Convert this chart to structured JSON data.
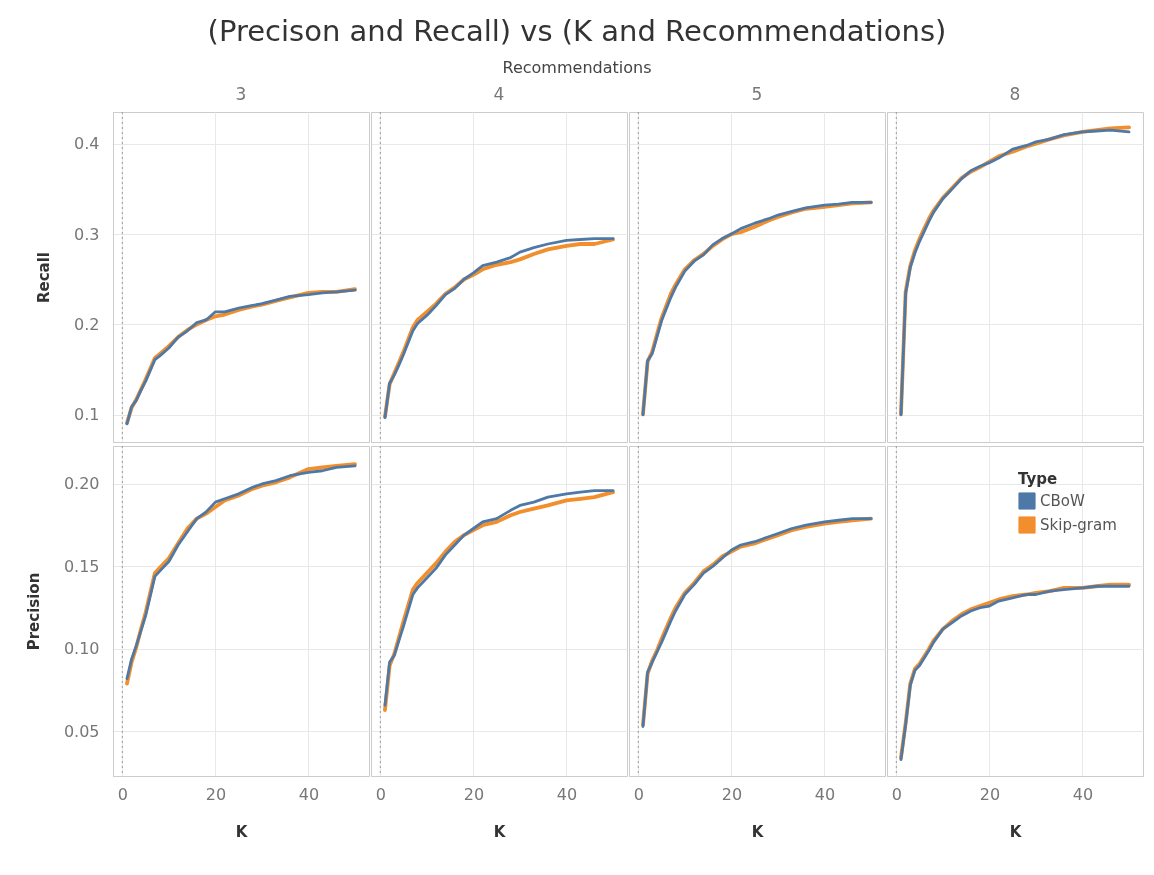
{
  "chart_data": [
    {
      "type": "line",
      "title": "3",
      "ylabel": "Recall",
      "annotations": [
        "(Precison and Recall) vs (K and Recommendations)",
        "Recommendations"
      ],
      "xlim": [
        -2,
        53
      ],
      "xticks": [
        0,
        20,
        40
      ],
      "ylim": [
        0.07,
        0.435
      ],
      "yticks": [
        0.1,
        0.2,
        0.3,
        0.4
      ],
      "grid": true,
      "tick_labels": "y",
      "ref_lines": [
        {
          "axis": "x",
          "value": 0,
          "color": "#999999",
          "line_style": "dotted"
        }
      ],
      "x": [
        1,
        2,
        3,
        4,
        5,
        7,
        8,
        10,
        12,
        14,
        16,
        18,
        20,
        22,
        25,
        28,
        30,
        33,
        36,
        40,
        43,
        46,
        50
      ],
      "series": [
        {
          "color": "#4e79a7",
          "values": [
            0.09,
            0.109,
            0.116,
            0.127,
            0.137,
            0.161,
            0.165,
            0.174,
            0.186,
            0.193,
            0.202,
            0.205,
            0.214,
            0.214,
            0.218,
            0.221,
            0.223,
            0.227,
            0.231,
            0.233,
            0.235,
            0.236,
            0.238
          ]
        },
        {
          "color": "#f28e2b",
          "values": [
            0.091,
            0.108,
            0.117,
            0.128,
            0.139,
            0.163,
            0.167,
            0.176,
            0.186,
            0.194,
            0.2,
            0.205,
            0.209,
            0.211,
            0.216,
            0.22,
            0.222,
            0.226,
            0.23,
            0.235,
            0.236,
            0.236,
            0.239
          ]
        }
      ]
    },
    {
      "type": "line",
      "title": "4",
      "xlim": [
        -2,
        53
      ],
      "xticks": [
        0,
        20,
        40
      ],
      "ylim": [
        0.07,
        0.435
      ],
      "yticks": [
        0.1,
        0.2,
        0.3,
        0.4
      ],
      "grid": true,
      "tick_labels": false,
      "ref_lines": [
        {
          "axis": "x",
          "value": 0,
          "color": "#999999",
          "line_style": "dotted"
        }
      ],
      "x": [
        1,
        2,
        3,
        4,
        5,
        7,
        8,
        10,
        12,
        14,
        16,
        18,
        20,
        22,
        25,
        28,
        30,
        33,
        36,
        40,
        43,
        46,
        50
      ],
      "series": [
        {
          "color": "#4e79a7",
          "values": [
            0.097,
            0.135,
            0.144,
            0.155,
            0.167,
            0.193,
            0.201,
            0.21,
            0.221,
            0.233,
            0.24,
            0.25,
            0.257,
            0.265,
            0.269,
            0.274,
            0.28,
            0.285,
            0.289,
            0.293,
            0.294,
            0.295,
            0.295
          ]
        },
        {
          "color": "#f28e2b",
          "values": [
            0.098,
            0.134,
            0.146,
            0.158,
            0.17,
            0.197,
            0.205,
            0.214,
            0.223,
            0.234,
            0.241,
            0.25,
            0.255,
            0.261,
            0.266,
            0.269,
            0.272,
            0.278,
            0.283,
            0.287,
            0.289,
            0.289,
            0.294
          ]
        }
      ]
    },
    {
      "type": "line",
      "title": "5",
      "xlim": [
        -2,
        53
      ],
      "xticks": [
        0,
        20,
        40
      ],
      "ylim": [
        0.07,
        0.435
      ],
      "yticks": [
        0.1,
        0.2,
        0.3,
        0.4
      ],
      "grid": true,
      "tick_labels": false,
      "ref_lines": [
        {
          "axis": "x",
          "value": 0,
          "color": "#999999",
          "line_style": "dotted"
        }
      ],
      "x": [
        1,
        2,
        3,
        4,
        5,
        7,
        8,
        10,
        12,
        14,
        16,
        18,
        20,
        22,
        25,
        28,
        30,
        33,
        36,
        40,
        43,
        46,
        50
      ],
      "series": [
        {
          "color": "#4e79a7",
          "values": [
            0.1,
            0.16,
            0.168,
            0.186,
            0.204,
            0.23,
            0.241,
            0.259,
            0.27,
            0.277,
            0.288,
            0.295,
            0.3,
            0.306,
            0.312,
            0.317,
            0.321,
            0.325,
            0.329,
            0.332,
            0.333,
            0.335,
            0.335
          ]
        },
        {
          "color": "#f28e2b",
          "values": [
            0.101,
            0.159,
            0.17,
            0.189,
            0.207,
            0.234,
            0.244,
            0.261,
            0.271,
            0.278,
            0.287,
            0.294,
            0.3,
            0.302,
            0.308,
            0.315,
            0.319,
            0.324,
            0.328,
            0.33,
            0.332,
            0.334,
            0.335
          ]
        }
      ]
    },
    {
      "type": "line",
      "title": "8",
      "xlim": [
        -2,
        53
      ],
      "xticks": [
        0,
        20,
        40
      ],
      "ylim": [
        0.07,
        0.435
      ],
      "yticks": [
        0.1,
        0.2,
        0.3,
        0.4
      ],
      "grid": true,
      "tick_labels": false,
      "ref_lines": [
        {
          "axis": "x",
          "value": 0,
          "color": "#999999",
          "line_style": "dotted"
        }
      ],
      "x": [
        1,
        2,
        3,
        4,
        5,
        7,
        8,
        10,
        12,
        14,
        16,
        18,
        20,
        22,
        25,
        28,
        30,
        33,
        36,
        40,
        43,
        46,
        50
      ],
      "series": [
        {
          "color": "#4e79a7",
          "values": [
            0.1,
            0.234,
            0.263,
            0.279,
            0.292,
            0.314,
            0.324,
            0.339,
            0.35,
            0.361,
            0.37,
            0.375,
            0.379,
            0.384,
            0.394,
            0.398,
            0.402,
            0.405,
            0.41,
            0.413,
            0.414,
            0.415,
            0.413
          ]
        },
        {
          "color": "#f28e2b",
          "values": [
            0.101,
            0.236,
            0.265,
            0.282,
            0.295,
            0.317,
            0.326,
            0.34,
            0.351,
            0.362,
            0.369,
            0.374,
            0.38,
            0.386,
            0.391,
            0.397,
            0.4,
            0.405,
            0.409,
            0.413,
            0.415,
            0.417,
            0.418
          ]
        }
      ]
    },
    {
      "type": "line",
      "xlabel": "K",
      "ylabel": "Precision",
      "xlim": [
        -2,
        53
      ],
      "xticks": [
        0,
        20,
        40
      ],
      "ylim": [
        0.023,
        0.223
      ],
      "yticks": [
        {
          "value": 0.05,
          "label": "0.05"
        },
        {
          "value": 0.1,
          "label": "0.10"
        },
        {
          "value": 0.15,
          "label": "0.15"
        },
        {
          "value": 0.2,
          "label": "0.20"
        }
      ],
      "grid": true,
      "ref_lines": [
        {
          "axis": "x",
          "value": 0,
          "color": "#999999",
          "line_style": "dotted"
        }
      ],
      "x": [
        1,
        2,
        3,
        4,
        5,
        7,
        8,
        10,
        12,
        14,
        16,
        18,
        20,
        22,
        25,
        28,
        30,
        33,
        36,
        40,
        43,
        46,
        50
      ],
      "series": [
        {
          "color": "#4e79a7",
          "values": [
            0.082,
            0.094,
            0.102,
            0.111,
            0.12,
            0.144,
            0.147,
            0.153,
            0.163,
            0.171,
            0.179,
            0.183,
            0.189,
            0.191,
            0.194,
            0.198,
            0.2,
            0.202,
            0.205,
            0.207,
            0.208,
            0.21,
            0.211
          ]
        },
        {
          "color": "#f28e2b",
          "values": [
            0.079,
            0.092,
            0.101,
            0.112,
            0.122,
            0.146,
            0.149,
            0.155,
            0.164,
            0.173,
            0.179,
            0.182,
            0.186,
            0.19,
            0.193,
            0.197,
            0.199,
            0.201,
            0.204,
            0.209,
            0.21,
            0.211,
            0.212
          ]
        }
      ]
    },
    {
      "type": "line",
      "xlabel": "K",
      "xlim": [
        -2,
        53
      ],
      "xticks": [
        0,
        20,
        40
      ],
      "ylim": [
        0.023,
        0.223
      ],
      "yticks": [
        0.05,
        0.1,
        0.15,
        0.2
      ],
      "grid": true,
      "tick_labels": "x",
      "ref_lines": [
        {
          "axis": "x",
          "value": 0,
          "color": "#999999",
          "line_style": "dotted"
        }
      ],
      "x": [
        1,
        2,
        3,
        4,
        5,
        7,
        8,
        10,
        12,
        14,
        16,
        18,
        20,
        22,
        25,
        28,
        30,
        33,
        36,
        40,
        43,
        46,
        50
      ],
      "series": [
        {
          "color": "#4e79a7",
          "values": [
            0.066,
            0.092,
            0.096,
            0.105,
            0.114,
            0.133,
            0.137,
            0.143,
            0.149,
            0.157,
            0.163,
            0.169,
            0.173,
            0.177,
            0.179,
            0.184,
            0.187,
            0.189,
            0.192,
            0.194,
            0.195,
            0.196,
            0.196
          ]
        },
        {
          "color": "#f28e2b",
          "values": [
            0.063,
            0.09,
            0.097,
            0.107,
            0.117,
            0.136,
            0.14,
            0.146,
            0.152,
            0.159,
            0.165,
            0.169,
            0.172,
            0.175,
            0.177,
            0.181,
            0.183,
            0.185,
            0.187,
            0.19,
            0.191,
            0.192,
            0.195
          ]
        }
      ]
    },
    {
      "type": "line",
      "xlabel": "K",
      "xlim": [
        -2,
        53
      ],
      "xticks": [
        0,
        20,
        40
      ],
      "ylim": [
        0.023,
        0.223
      ],
      "yticks": [
        0.05,
        0.1,
        0.15,
        0.2
      ],
      "grid": true,
      "tick_labels": "x",
      "ref_lines": [
        {
          "axis": "x",
          "value": 0,
          "color": "#999999",
          "line_style": "dotted"
        }
      ],
      "x": [
        1,
        2,
        3,
        4,
        5,
        7,
        8,
        10,
        12,
        14,
        16,
        18,
        20,
        22,
        25,
        28,
        30,
        33,
        36,
        40,
        43,
        46,
        50
      ],
      "series": [
        {
          "color": "#4e79a7",
          "values": [
            0.053,
            0.086,
            0.092,
            0.098,
            0.104,
            0.117,
            0.123,
            0.133,
            0.139,
            0.146,
            0.15,
            0.155,
            0.16,
            0.163,
            0.165,
            0.168,
            0.17,
            0.173,
            0.175,
            0.177,
            0.178,
            0.179,
            0.179
          ]
        },
        {
          "color": "#f28e2b",
          "values": [
            0.054,
            0.085,
            0.093,
            0.099,
            0.106,
            0.119,
            0.125,
            0.134,
            0.14,
            0.147,
            0.151,
            0.156,
            0.159,
            0.162,
            0.164,
            0.167,
            0.169,
            0.172,
            0.174,
            0.176,
            0.177,
            0.178,
            0.179
          ]
        }
      ]
    },
    {
      "type": "line",
      "xlabel": "K",
      "legend_title": "Type",
      "legend": "top right",
      "xlim": [
        -2,
        53
      ],
      "xticks": [
        0,
        20,
        40
      ],
      "ylim": [
        0.023,
        0.223
      ],
      "yticks": [
        0.05,
        0.1,
        0.15,
        0.2
      ],
      "grid": true,
      "tick_labels": "x",
      "ref_lines": [
        {
          "axis": "x",
          "value": 0,
          "color": "#999999",
          "line_style": "dotted"
        }
      ],
      "x": [
        1,
        2,
        3,
        4,
        5,
        7,
        8,
        10,
        12,
        14,
        16,
        18,
        20,
        22,
        25,
        28,
        30,
        33,
        36,
        40,
        43,
        46,
        50
      ],
      "series": [
        {
          "name": "CBoW",
          "color": "#4e79a7",
          "values": [
            0.033,
            0.054,
            0.078,
            0.087,
            0.09,
            0.099,
            0.104,
            0.112,
            0.116,
            0.12,
            0.123,
            0.125,
            0.126,
            0.129,
            0.131,
            0.133,
            0.133,
            0.135,
            0.136,
            0.137,
            0.138,
            0.138,
            0.138
          ]
        },
        {
          "name": "Skip-gram",
          "color": "#f28e2b",
          "values": [
            0.034,
            0.055,
            0.079,
            0.088,
            0.091,
            0.1,
            0.105,
            0.112,
            0.117,
            0.121,
            0.124,
            0.126,
            0.128,
            0.13,
            0.132,
            0.133,
            0.134,
            0.135,
            0.137,
            0.137,
            0.138,
            0.139,
            0.139
          ]
        }
      ]
    }
  ]
}
